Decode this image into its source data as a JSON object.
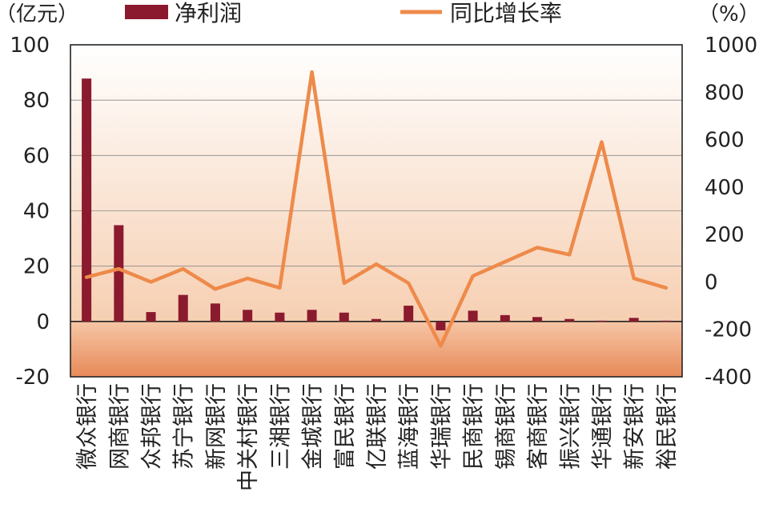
{
  "chart_data": {
    "type": "bar+line",
    "categories": [
      "微众银行",
      "网商银行",
      "众邦银行",
      "苏宁银行",
      "新网银行",
      "中关村银行",
      "三湘银行",
      "金城银行",
      "富民银行",
      "亿联银行",
      "蓝海银行",
      "华瑞银行",
      "民商银行",
      "锡商银行",
      "客商银行",
      "振兴银行",
      "华通银行",
      "新安银行",
      "裕民银行"
    ],
    "series": [
      {
        "name": "净利润",
        "type": "bar",
        "axis": "left",
        "color": "#8b1a2e",
        "values": [
          87.8,
          34.8,
          3.4,
          9.6,
          6.5,
          4.2,
          3.2,
          4.2,
          3.2,
          0.9,
          5.7,
          -3.2,
          3.9,
          2.3,
          1.6,
          0.9,
          0.3,
          1.3,
          0.3
        ]
      },
      {
        "name": "同比增长率",
        "type": "line",
        "axis": "right",
        "color": "#ee8a4a",
        "values": [
          20,
          55,
          0,
          55,
          -30,
          15,
          -25,
          885,
          -5,
          75,
          -5,
          -270,
          25,
          85,
          145,
          115,
          590,
          15,
          -25
        ]
      }
    ],
    "left_axis": {
      "unit": "（亿元）",
      "ylim": [
        -20,
        100
      ],
      "ticks": [
        "-20",
        "0",
        "20",
        "40",
        "60",
        "80",
        "100"
      ],
      "tick_values": [
        -20,
        0,
        20,
        40,
        60,
        80,
        100
      ]
    },
    "right_axis": {
      "unit": "（%）",
      "ylim": [
        -400,
        1000
      ],
      "ticks": [
        "-400",
        "-200",
        "0",
        "200",
        "400",
        "600",
        "800",
        "1000"
      ],
      "tick_values": [
        -400,
        -200,
        0,
        200,
        400,
        600,
        800,
        1000
      ]
    },
    "legend": {
      "bar_label": "净利润",
      "line_label": "同比增长率",
      "placement": "top"
    },
    "grid": true
  }
}
